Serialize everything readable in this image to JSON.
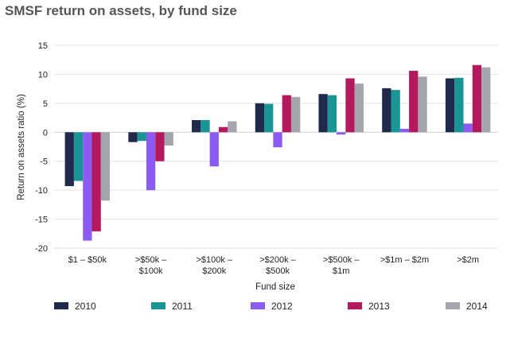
{
  "chart_data": {
    "type": "bar",
    "title": "SMSF return on assets, by fund size",
    "xlabel": "Fund size",
    "ylabel": "Return on assets ratio (%)",
    "ylim": [
      -20,
      15
    ],
    "yticks": [
      "15",
      "10",
      "5",
      "0",
      "-5",
      "-10",
      "-15",
      "-20"
    ],
    "ytick_values": [
      15,
      10,
      5,
      0,
      -5,
      -10,
      -15,
      -20
    ],
    "grid": true,
    "legend_position": "bottom",
    "categories": [
      [
        "$1 – $50k"
      ],
      [
        ">$50k –",
        "$100k"
      ],
      [
        ">$100k –",
        "$200k"
      ],
      [
        ">$200k –",
        "$500k"
      ],
      [
        ">$500k –",
        "$1m"
      ],
      [
        ">$1m – $2m"
      ],
      [
        ">$2m"
      ]
    ],
    "series": [
      {
        "name": "2010",
        "color": "#1f2a4d",
        "values": [
          -9.3,
          -1.7,
          2.1,
          5.0,
          6.6,
          7.6,
          9.3
        ]
      },
      {
        "name": "2011",
        "color": "#1a9494",
        "values": [
          -8.4,
          -1.5,
          2.1,
          4.9,
          6.4,
          7.3,
          9.4
        ]
      },
      {
        "name": "2012",
        "color": "#8c5cf2",
        "values": [
          -18.7,
          -10.0,
          -5.9,
          -2.6,
          -0.4,
          0.6,
          1.5
        ]
      },
      {
        "name": "2013",
        "color": "#b3195c",
        "values": [
          -17.1,
          -5.0,
          0.9,
          6.4,
          9.3,
          10.6,
          11.6
        ]
      },
      {
        "name": "2014",
        "color": "#a5a5ae",
        "values": [
          -11.8,
          -2.3,
          1.9,
          6.1,
          8.4,
          9.6,
          11.2
        ]
      }
    ]
  }
}
